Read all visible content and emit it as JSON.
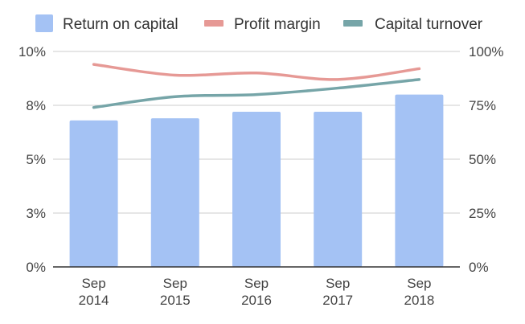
{
  "chart_data": {
    "type": "bar",
    "categories": [
      "Sep 2014",
      "Sep 2015",
      "Sep 2016",
      "Sep 2017",
      "Sep 2018"
    ],
    "category_lines": [
      [
        "Sep",
        "2014"
      ],
      [
        "Sep",
        "2015"
      ],
      [
        "Sep",
        "2016"
      ],
      [
        "Sep",
        "2017"
      ],
      [
        "Sep",
        "2018"
      ]
    ],
    "legend_position": "top",
    "grid": true,
    "left_axis": {
      "range": [
        0,
        10
      ],
      "ticks": [
        {
          "value": 0,
          "label": "0%"
        },
        {
          "value": 2.5,
          "label": "3%"
        },
        {
          "value": 5,
          "label": "5%"
        },
        {
          "value": 7.5,
          "label": "8%"
        },
        {
          "value": 10,
          "label": "10%"
        }
      ]
    },
    "right_axis": {
      "range": [
        0,
        100
      ],
      "ticks": [
        {
          "value": 0,
          "label": "0%"
        },
        {
          "value": 25,
          "label": "25%"
        },
        {
          "value": 50,
          "label": "50%"
        },
        {
          "value": 75,
          "label": "75%"
        },
        {
          "value": 100,
          "label": "100%"
        }
      ]
    },
    "series": [
      {
        "name": "Return on capital",
        "kind": "bar",
        "axis": "left",
        "color": "#a4c2f4",
        "values": [
          6.8,
          6.9,
          7.2,
          7.2,
          8.0
        ]
      },
      {
        "name": "Profit margin",
        "kind": "line",
        "axis": "right",
        "color": "#e69995",
        "values": [
          94,
          89,
          90,
          87,
          92
        ]
      },
      {
        "name": "Capital turnover",
        "kind": "line",
        "axis": "right",
        "color": "#76a5a8",
        "values": [
          74,
          79,
          80,
          83,
          87
        ]
      }
    ]
  }
}
